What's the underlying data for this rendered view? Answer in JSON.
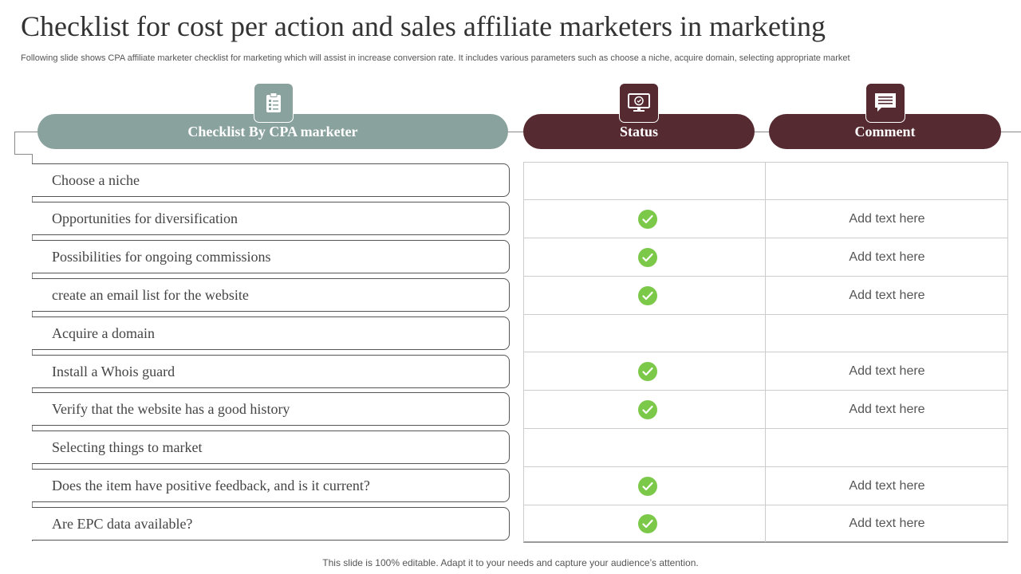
{
  "slide": {
    "title": "Checklist for cost per action and sales affiliate marketers in marketing",
    "subtitle": "Following slide shows CPA affiliate marketer checklist for marketing which will assist in increase conversion rate. It includes various parameters such as choose a niche, acquire domain, selecting appropriate market",
    "footer": "This slide is 100% editable. Adapt it to your needs and capture your audience’s attention."
  },
  "headers": {
    "checklist": "Checklist By CPA marketer",
    "status": "Status",
    "comment": "Comment"
  },
  "icons": {
    "checklist": "clipboard-icon",
    "status": "monitor-icon",
    "comment": "speech-bubble-icon"
  },
  "colors": {
    "sage": "#8aa29e",
    "maroon": "#552a31",
    "check_green": "#7cc94a"
  },
  "rows": [
    {
      "item": "Choose a niche",
      "checked": false,
      "comment": ""
    },
    {
      "item": "Opportunities for diversification",
      "checked": true,
      "comment": "Add text here"
    },
    {
      "item": "Possibilities for ongoing commissions",
      "checked": true,
      "comment": "Add text here"
    },
    {
      "item": "create an email list for the website",
      "checked": true,
      "comment": "Add text here"
    },
    {
      "item": "Acquire a domain",
      "checked": false,
      "comment": ""
    },
    {
      "item": "Install a Whois guard",
      "checked": true,
      "comment": "Add text here"
    },
    {
      "item": "Verify that the website has a good history",
      "checked": true,
      "comment": "Add text here"
    },
    {
      "item": "Selecting things to market",
      "checked": false,
      "comment": ""
    },
    {
      "item": "Does the item have positive feedback, and is it current?",
      "checked": true,
      "comment": "Add text here"
    },
    {
      "item": "Are EPC data available?",
      "checked": true,
      "comment": "Add text here"
    }
  ]
}
